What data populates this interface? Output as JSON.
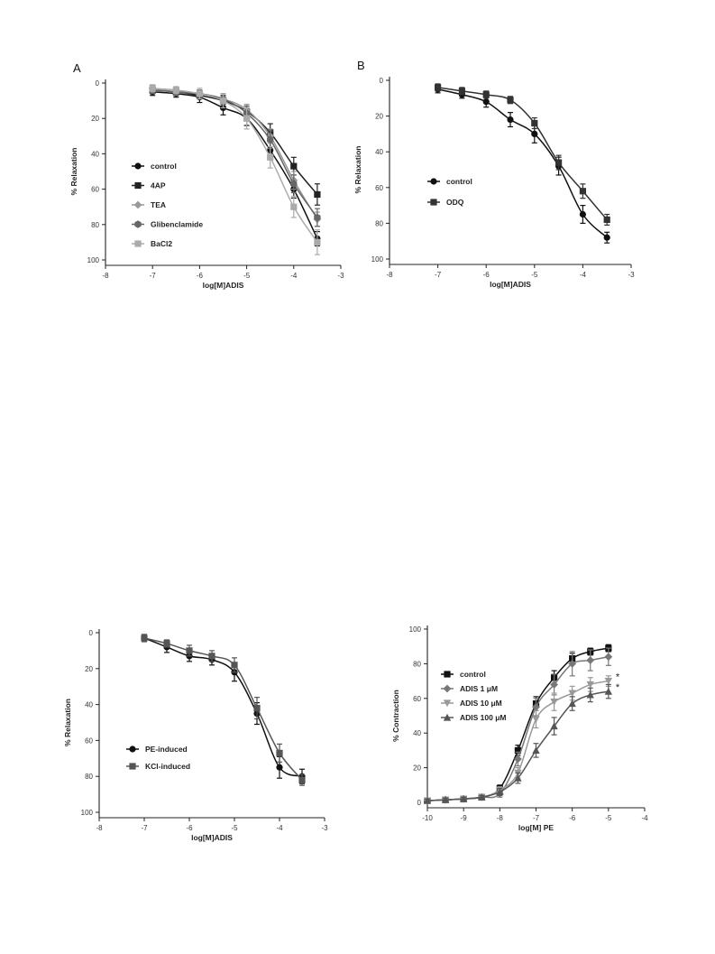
{
  "chart_data": [
    {
      "type": "scatter",
      "panel_label": "A",
      "xlabel": "log[M]ADIS",
      "ylabel": "% Relaxation",
      "xlim": [
        -8,
        -3
      ],
      "ylim": [
        0,
        100
      ],
      "y_inverted": true,
      "xticks": [
        -8,
        -7,
        -6,
        -5,
        -4,
        -3
      ],
      "yticks": [
        0,
        20,
        40,
        60,
        80,
        100
      ],
      "legend_position": "left-center",
      "x": [
        -7,
        -6.5,
        -6,
        -5.5,
        -5,
        -4.5,
        -4,
        -3.5
      ],
      "series": [
        {
          "name": "control",
          "marker": "circle",
          "color": "#111111",
          "values": [
            5,
            6,
            8,
            14,
            20,
            38,
            60,
            88
          ],
          "errors": [
            2,
            2,
            3,
            4,
            4,
            5,
            5,
            4
          ]
        },
        {
          "name": "4AP",
          "marker": "square",
          "color": "#222222",
          "values": [
            4,
            5,
            7,
            10,
            16,
            28,
            47,
            63
          ],
          "errors": [
            2,
            2,
            2,
            3,
            3,
            5,
            5,
            6
          ]
        },
        {
          "name": "TEA",
          "marker": "diamond",
          "color": "#999999",
          "values": [
            3,
            5,
            6,
            9,
            15,
            30,
            55,
            77
          ],
          "errors": [
            2,
            2,
            2,
            3,
            3,
            4,
            5,
            4
          ]
        },
        {
          "name": "Glibenclamide",
          "marker": "hexagon",
          "color": "#666666",
          "values": [
            4,
            5,
            6,
            9,
            17,
            32,
            57,
            76
          ],
          "errors": [
            2,
            2,
            2,
            3,
            4,
            5,
            5,
            5
          ]
        },
        {
          "name": "BaCl2",
          "marker": "square",
          "color": "#aaaaaa",
          "values": [
            3,
            4,
            6,
            10,
            20,
            42,
            70,
            90
          ],
          "errors": [
            2,
            2,
            3,
            4,
            6,
            6,
            6,
            7
          ]
        }
      ]
    },
    {
      "type": "scatter",
      "panel_label": "B",
      "xlabel": "log[M]ADIS",
      "ylabel": "% Relaxation",
      "xlim": [
        -8,
        -3
      ],
      "ylim": [
        0,
        100
      ],
      "y_inverted": true,
      "xticks": [
        -8,
        -7,
        -6,
        -5,
        -4,
        -3
      ],
      "yticks": [
        0,
        20,
        40,
        60,
        80,
        100
      ],
      "legend_position": "left-center",
      "x": [
        -7,
        -6.5,
        -6,
        -5.5,
        -5,
        -4.5,
        -4,
        -3.5
      ],
      "series": [
        {
          "name": "control",
          "marker": "circle",
          "color": "#111111",
          "values": [
            5,
            8,
            12,
            22,
            30,
            48,
            75,
            88
          ],
          "errors": [
            2,
            2,
            3,
            4,
            5,
            5,
            5,
            3
          ]
        },
        {
          "name": "ODQ",
          "marker": "square",
          "color": "#333333",
          "values": [
            4,
            6,
            8,
            11,
            24,
            46,
            62,
            78
          ],
          "errors": [
            2,
            2,
            2,
            2,
            3,
            4,
            4,
            3
          ]
        }
      ]
    },
    {
      "type": "scatter",
      "panel_label": "",
      "xlabel": "log[M]ADIS",
      "ylabel": "% Relaxation",
      "xlim": [
        -8,
        -3
      ],
      "ylim": [
        0,
        100
      ],
      "y_inverted": true,
      "xticks": [
        -8,
        -7,
        -6,
        -5,
        -4,
        -3
      ],
      "yticks": [
        0,
        20,
        40,
        60,
        80,
        100
      ],
      "legend_position": "bottom-left",
      "x": [
        -7,
        -6.5,
        -6,
        -5.5,
        -5,
        -4.5,
        -4,
        -3.5
      ],
      "series": [
        {
          "name": "PE-induced",
          "marker": "circle",
          "color": "#111111",
          "values": [
            3,
            8,
            13,
            15,
            22,
            45,
            75,
            80
          ],
          "errors": [
            2,
            3,
            3,
            3,
            5,
            6,
            6,
            4
          ]
        },
        {
          "name": "KCl-induced",
          "marker": "square",
          "color": "#555555",
          "values": [
            3,
            6,
            10,
            13,
            18,
            42,
            67,
            82
          ],
          "errors": [
            2,
            2,
            3,
            3,
            4,
            6,
            5,
            3
          ]
        }
      ]
    },
    {
      "type": "scatter",
      "panel_label": "",
      "xlabel": "log[M] PE",
      "ylabel": "% Contraction",
      "xlim": [
        -10,
        -4
      ],
      "ylim": [
        0,
        100
      ],
      "y_inverted": false,
      "xticks": [
        -10,
        -9,
        -8,
        -7,
        -6,
        -5,
        -4
      ],
      "yticks": [
        0,
        20,
        40,
        60,
        80,
        100
      ],
      "legend_position": "top-left",
      "x": [
        -10,
        -9.5,
        -9,
        -8.5,
        -8,
        -7.5,
        -7,
        -6.5,
        -6,
        -5.5,
        -5
      ],
      "series": [
        {
          "name": "control",
          "marker": "square",
          "color": "#111111",
          "values": [
            1,
            1.5,
            2,
            3,
            8,
            30,
            57,
            72,
            83,
            87,
            89
          ],
          "errors": [
            1,
            1,
            1,
            1,
            2,
            3,
            4,
            4,
            3,
            2,
            2
          ],
          "significant": false
        },
        {
          "name": "ADIS 1 μM",
          "marker": "diamond",
          "color": "#777777",
          "values": [
            1,
            1.5,
            2,
            3,
            5,
            25,
            55,
            68,
            80,
            82,
            84
          ],
          "errors": [
            1,
            1,
            1,
            1,
            2,
            4,
            5,
            6,
            7,
            6,
            5
          ],
          "significant": false
        },
        {
          "name": "ADIS 10 μM",
          "marker": "triangle-down",
          "color": "#999999",
          "values": [
            1,
            1.5,
            2,
            3,
            7,
            17,
            48,
            58,
            63,
            68,
            70
          ],
          "errors": [
            1,
            1,
            1,
            1,
            2,
            3,
            5,
            5,
            4,
            4,
            3
          ],
          "significant": true
        },
        {
          "name": "ADIS 100 μM",
          "marker": "triangle-up",
          "color": "#555555",
          "values": [
            1,
            1.5,
            2,
            3,
            6,
            14,
            30,
            44,
            57,
            62,
            64
          ],
          "errors": [
            1,
            1,
            1,
            1,
            2,
            3,
            4,
            5,
            4,
            4,
            4
          ],
          "significant": true
        }
      ],
      "annotations": [
        "*",
        "*"
      ]
    }
  ]
}
